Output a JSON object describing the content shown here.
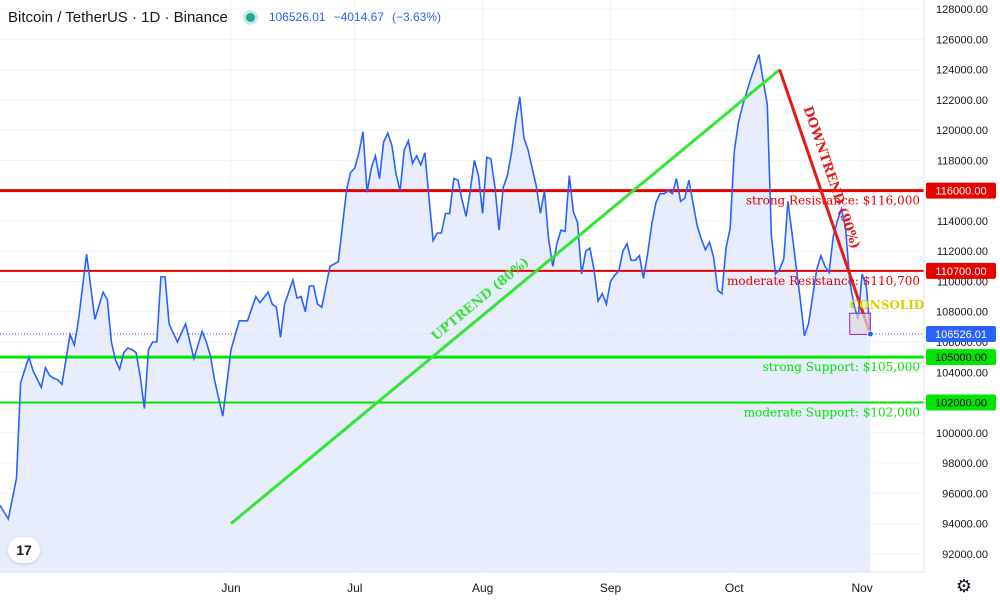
{
  "header": {
    "symbol": "Bitcoin / TetherUS · 1D · Binance",
    "last_price": "106526.01",
    "change": "−4014.67",
    "change_pct": "(−3.63%)"
  },
  "colors": {
    "line": "#2962ff",
    "area": "#e3eafc",
    "resistance": "#e60000",
    "support": "#00e600",
    "uptrend": "#33e633",
    "downtrend": "#e61919",
    "consolidation": "#d4d400",
    "axis_text": "#131722"
  },
  "icons": {
    "logo": "tradingview-logo-icon",
    "settings": "gear-icon"
  },
  "chart_data": {
    "type": "line",
    "title": "Bitcoin / TetherUS · 1D · Binance",
    "y_ticks": [
      92000,
      94000,
      96000,
      98000,
      100000,
      102000,
      104000,
      106000,
      108000,
      110000,
      112000,
      114000,
      116000,
      118000,
      120000,
      122000,
      124000,
      126000,
      128000
    ],
    "ylim": [
      90800,
      128600
    ],
    "x_labels": [
      {
        "label": "Jun",
        "date": "2025-06-01"
      },
      {
        "label": "Jul",
        "date": "2025-07-01"
      },
      {
        "label": "Aug",
        "date": "2025-08-01"
      },
      {
        "label": "Sep",
        "date": "2025-09-01"
      },
      {
        "label": "Oct",
        "date": "2025-10-01"
      },
      {
        "label": "Nov",
        "date": "2025-11-01"
      }
    ],
    "xlim": [
      "2025-04-06",
      "2025-11-16"
    ],
    "last_value": 106526.01,
    "series": [
      {
        "dates": [
          "2025-04-06",
          "2025-04-08",
          "2025-04-10",
          "2025-04-11",
          "2025-04-13",
          "2025-04-14",
          "2025-04-16",
          "2025-04-17",
          "2025-04-18",
          "2025-04-19",
          "2025-04-20",
          "2025-04-21",
          "2025-04-23",
          "2025-04-24",
          "2025-04-25",
          "2025-04-27",
          "2025-04-29",
          "2025-05-01",
          "2025-05-02",
          "2025-05-03",
          "2025-05-04",
          "2025-05-05",
          "2025-05-06",
          "2025-05-07",
          "2025-05-08",
          "2025-05-09",
          "2025-05-10",
          "2025-05-11",
          "2025-05-12",
          "2025-05-13",
          "2025-05-14",
          "2025-05-15",
          "2025-05-16",
          "2025-05-17",
          "2025-05-19",
          "2025-05-21",
          "2025-05-23",
          "2025-05-25",
          "2025-05-26",
          "2025-05-27",
          "2025-05-28",
          "2025-05-29",
          "2025-05-30",
          "2025-06-01",
          "2025-06-03",
          "2025-06-05",
          "2025-06-07",
          "2025-06-08",
          "2025-06-10",
          "2025-06-11",
          "2025-06-12",
          "2025-06-13",
          "2025-06-14",
          "2025-06-16",
          "2025-06-17",
          "2025-06-18",
          "2025-06-19",
          "2025-06-20",
          "2025-06-21",
          "2025-06-22",
          "2025-06-23",
          "2025-06-25",
          "2025-06-27",
          "2025-06-29",
          "2025-06-30",
          "2025-07-01",
          "2025-07-02",
          "2025-07-03",
          "2025-07-04",
          "2025-07-05",
          "2025-07-06",
          "2025-07-07",
          "2025-07-08",
          "2025-07-09",
          "2025-07-10",
          "2025-07-11",
          "2025-07-12",
          "2025-07-13",
          "2025-07-14",
          "2025-07-15",
          "2025-07-16",
          "2025-07-17",
          "2025-07-18",
          "2025-07-19",
          "2025-07-20",
          "2025-07-21",
          "2025-07-22",
          "2025-07-23",
          "2025-07-24",
          "2025-07-25",
          "2025-07-26",
          "2025-07-27",
          "2025-07-28",
          "2025-07-29",
          "2025-07-30",
          "2025-07-31",
          "2025-08-01",
          "2025-08-02",
          "2025-08-03",
          "2025-08-04",
          "2025-08-05",
          "2025-08-06",
          "2025-08-07",
          "2025-08-08",
          "2025-08-09",
          "2025-08-10",
          "2025-08-11",
          "2025-08-12",
          "2025-08-13",
          "2025-08-14",
          "2025-08-15",
          "2025-08-16",
          "2025-08-17",
          "2025-08-18",
          "2025-08-19",
          "2025-08-20",
          "2025-08-21",
          "2025-08-22",
          "2025-08-23",
          "2025-08-24",
          "2025-08-25",
          "2025-08-26",
          "2025-08-27",
          "2025-08-28",
          "2025-08-29",
          "2025-08-30",
          "2025-08-31",
          "2025-09-01",
          "2025-09-02",
          "2025-09-03",
          "2025-09-04",
          "2025-09-05",
          "2025-09-06",
          "2025-09-07",
          "2025-09-08",
          "2025-09-09",
          "2025-09-10",
          "2025-09-11",
          "2025-09-12",
          "2025-09-13",
          "2025-09-14",
          "2025-09-15",
          "2025-09-16",
          "2025-09-17",
          "2025-09-18",
          "2025-09-19",
          "2025-09-20",
          "2025-09-21",
          "2025-09-22",
          "2025-09-23",
          "2025-09-24",
          "2025-09-25",
          "2025-09-26",
          "2025-09-27",
          "2025-09-28",
          "2025-09-29",
          "2025-09-30",
          "2025-10-01",
          "2025-10-02",
          "2025-10-03",
          "2025-10-04",
          "2025-10-05",
          "2025-10-06",
          "2025-10-07",
          "2025-10-08",
          "2025-10-09",
          "2025-10-10",
          "2025-10-11",
          "2025-10-12",
          "2025-10-13",
          "2025-10-14",
          "2025-10-15",
          "2025-10-16",
          "2025-10-17",
          "2025-10-18",
          "2025-10-19",
          "2025-10-20",
          "2025-10-21",
          "2025-10-22",
          "2025-10-23",
          "2025-10-24",
          "2025-10-25",
          "2025-10-26",
          "2025-10-27",
          "2025-10-28",
          "2025-10-29",
          "2025-10-30",
          "2025-10-31",
          "2025-11-01",
          "2025-11-02",
          "2025-11-03"
        ],
        "values": [
          95200,
          94300,
          97000,
          103300,
          105000,
          104100,
          103000,
          104300,
          103800,
          103600,
          103500,
          103200,
          106500,
          105800,
          107400,
          111800,
          107500,
          109300,
          108800,
          106000,
          104800,
          104200,
          105300,
          105600,
          105500,
          105300,
          103700,
          101600,
          105500,
          106000,
          106000,
          110300,
          110300,
          107200,
          106000,
          107200,
          104900,
          106700,
          106000,
          105100,
          103500,
          102300,
          101100,
          105500,
          107400,
          107400,
          109000,
          108600,
          109300,
          108500,
          108300,
          106300,
          108500,
          110100,
          108900,
          109000,
          108000,
          109700,
          109700,
          108500,
          108300,
          111000,
          111300,
          116000,
          117200,
          117500,
          118500,
          119900,
          115900,
          117500,
          118300,
          116800,
          119200,
          119800,
          119000,
          117100,
          116000,
          118700,
          119300,
          117800,
          118300,
          117700,
          118500,
          115500,
          112700,
          113200,
          113200,
          114500,
          114500,
          116800,
          116700,
          115400,
          114300,
          116000,
          118000,
          117000,
          114500,
          118200,
          118100,
          116200,
          113400,
          116200,
          117000,
          118500,
          120500,
          122200,
          119500,
          118700,
          117500,
          116300,
          114500,
          116000,
          112800,
          111000,
          112500,
          113400,
          113300,
          117000,
          114600,
          113900,
          110500,
          112000,
          112200,
          110800,
          108700,
          109200,
          108500,
          110000,
          110400,
          110700,
          112000,
          112500,
          111400,
          111400,
          111700,
          110200,
          111800,
          113800,
          115200,
          115800,
          115800,
          116000,
          115800,
          116800,
          115300,
          115500,
          116700,
          115200,
          113700,
          112800,
          112100,
          112600,
          111600,
          109400,
          109200,
          112200,
          113500,
          118600,
          120500,
          121600,
          122500,
          123400,
          124200,
          125000,
          123300,
          121700,
          113000,
          110500,
          110800,
          111500,
          115300,
          113200,
          111000,
          108800,
          106400,
          107200,
          109000,
          110800,
          111700,
          111000,
          110600,
          113000,
          114000,
          114800,
          113500,
          110000,
          108500,
          107500,
          110500,
          109700,
          106526
        ]
      }
    ],
    "levels": [
      {
        "label": "strong Resistance: $116,000",
        "tag": "116000.00",
        "value": 116000,
        "strength": "strong",
        "kind": "resistance"
      },
      {
        "label": "moderate Resistance: $110,700",
        "tag": "110700.00",
        "value": 110700,
        "strength": "moderate",
        "kind": "resistance"
      },
      {
        "label": "strong Support: $105,000",
        "tag": "105000.00",
        "value": 105000,
        "strength": "strong",
        "kind": "support"
      },
      {
        "label": "moderate Support: $102,000",
        "tag": "102000.00",
        "value": 102000,
        "strength": "moderate",
        "kind": "support"
      }
    ],
    "trendlines": [
      {
        "label": "UPTREND (80%)",
        "start": {
          "date": "2025-06-01",
          "value": 94000
        },
        "end": {
          "date": "2025-10-12",
          "value": 124000
        }
      },
      {
        "label": "DOWNTREND (90%)",
        "start": {
          "date": "2025-10-12",
          "value": 124000
        },
        "end": {
          "date": "2025-11-03",
          "value": 106500
        }
      }
    ],
    "consolidation": {
      "label": "CONSOLIDATIO",
      "start_date": "2025-10-29",
      "end_date": "2025-11-03",
      "low": 106500,
      "high": 107900
    },
    "grid": true,
    "legend": "none"
  }
}
